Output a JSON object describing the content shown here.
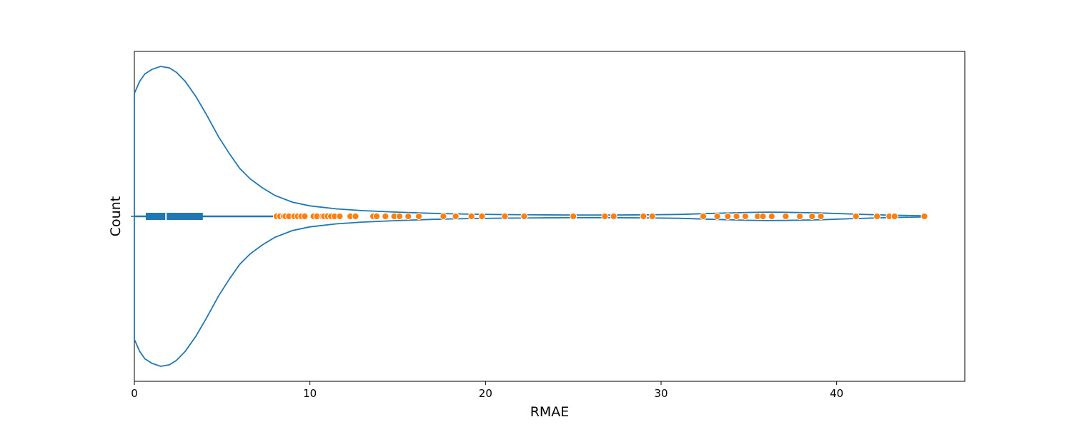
{
  "chart_data": {
    "type": "violin",
    "xlabel": "RMAE",
    "ylabel": "Count",
    "xlim": [
      0,
      47.3
    ],
    "xticks": [
      0,
      10,
      20,
      30,
      40
    ],
    "y_category_ticks": [
      ""
    ],
    "grid": false,
    "legend": "none",
    "colors": {
      "violin": "#1f77b4",
      "points": "#ff7f0e",
      "point_edge": "#ffffff",
      "box": "#1f77b4",
      "median": "#ffffff"
    },
    "box": {
      "q1": 0.65,
      "median": 1.8,
      "q3": 3.9,
      "whisker_low": 0,
      "whisker_high": 8.1
    },
    "density_profile": {
      "x": [
        0,
        0.3,
        0.6,
        1.0,
        1.5,
        2.0,
        2.4,
        2.9,
        3.5,
        4.1,
        4.8,
        5.4,
        6.0,
        6.6,
        7.3,
        8.0,
        9.0,
        10.0,
        11.5,
        13.0,
        15.0,
        17.0,
        19.0,
        21.0,
        23.0,
        25.0,
        27.0,
        29.0,
        31.0,
        33.0,
        35.0,
        36.0,
        37.0,
        39.0,
        41.0,
        43.0,
        45.0
      ],
      "half_width": [
        0.82,
        0.9,
        0.95,
        0.98,
        1.0,
        0.99,
        0.96,
        0.9,
        0.8,
        0.68,
        0.53,
        0.42,
        0.32,
        0.25,
        0.19,
        0.14,
        0.095,
        0.07,
        0.05,
        0.038,
        0.028,
        0.02,
        0.015,
        0.012,
        0.01,
        0.009,
        0.009,
        0.01,
        0.013,
        0.02,
        0.026,
        0.028,
        0.027,
        0.023,
        0.015,
        0.008,
        0.004
      ]
    },
    "points_x": [
      8.1,
      8.3,
      8.5,
      8.6,
      8.8,
      9.1,
      9.3,
      9.5,
      9.7,
      10.2,
      10.4,
      10.7,
      10.8,
      11.0,
      11.2,
      11.4,
      11.7,
      12.3,
      12.6,
      13.6,
      13.8,
      14.3,
      14.8,
      15.1,
      15.6,
      16.2,
      17.6,
      18.3,
      19.2,
      19.8,
      21.1,
      22.2,
      25.0,
      26.8,
      27.3,
      29.0,
      29.5,
      32.4,
      33.2,
      33.8,
      34.3,
      34.8,
      35.5,
      35.8,
      36.3,
      37.1,
      37.9,
      38.6,
      39.1,
      41.1,
      42.3,
      43.0,
      43.3,
      45.0
    ]
  }
}
